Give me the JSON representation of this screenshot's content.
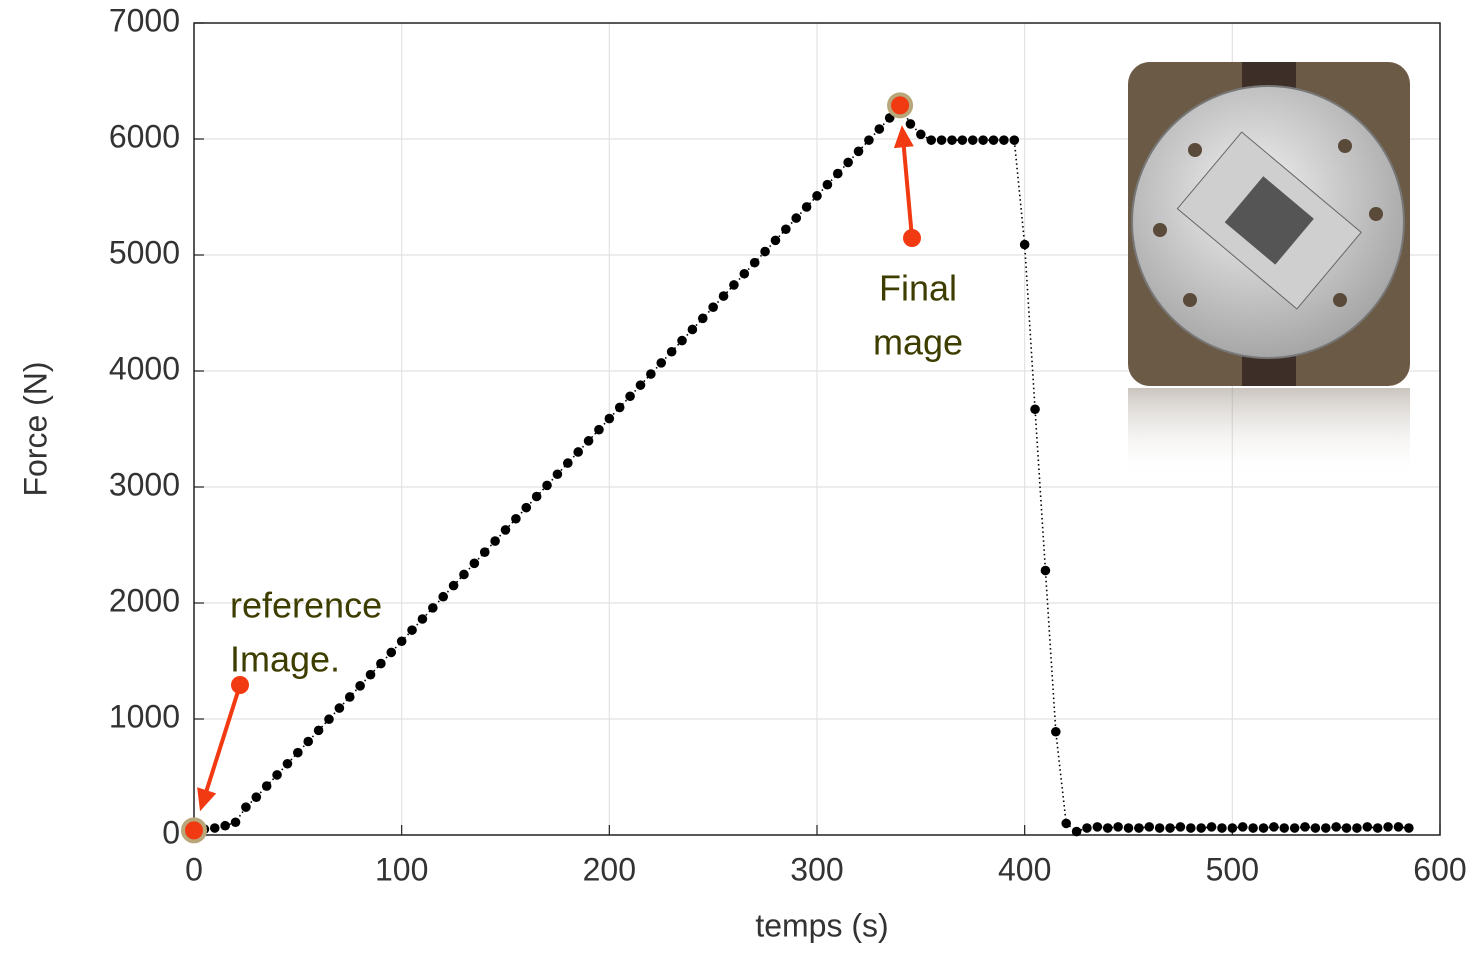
{
  "chart_data": {
    "type": "scatter",
    "x_label": "temps (s)",
    "y_label": "Force (N)",
    "xlim": [
      0,
      600
    ],
    "xticks": [
      0,
      100,
      200,
      300,
      400,
      500,
      600
    ],
    "ylim": [
      0,
      7000
    ],
    "yticks": [
      0,
      1000,
      2000,
      3000,
      4000,
      5000,
      6000,
      7000
    ],
    "grid": true,
    "series": [
      {
        "color": "#000000",
        "x": [
          0,
          5,
          10,
          15,
          20,
          25,
          30,
          35,
          40,
          45,
          50,
          55,
          60,
          65,
          70,
          75,
          80,
          85,
          90,
          95,
          100,
          105,
          110,
          115,
          120,
          125,
          130,
          135,
          140,
          145,
          150,
          155,
          160,
          165,
          170,
          175,
          180,
          185,
          190,
          195,
          200,
          205,
          210,
          215,
          220,
          225,
          230,
          235,
          240,
          245,
          250,
          255,
          260,
          265,
          270,
          275,
          280,
          285,
          290,
          295,
          300,
          305,
          310,
          315,
          320,
          325,
          330,
          335,
          340,
          345,
          350,
          355,
          360,
          365,
          370,
          375,
          380,
          385,
          390,
          395,
          400,
          405,
          410,
          415,
          420,
          425,
          430,
          435,
          440,
          445,
          450,
          455,
          460,
          465,
          470,
          475,
          480,
          485,
          490,
          495,
          500,
          505,
          510,
          515,
          520,
          525,
          530,
          535,
          540,
          545,
          550,
          555,
          560,
          565,
          570,
          575,
          580,
          585
        ],
        "values": [
          40,
          50,
          60,
          80,
          110,
          240,
          326,
          422,
          518,
          614,
          710,
          806,
          902,
          998,
          1094,
          1190,
          1286,
          1382,
          1478,
          1574,
          1670,
          1766,
          1862,
          1958,
          2054,
          2150,
          2246,
          2342,
          2438,
          2534,
          2630,
          2726,
          2822,
          2918,
          3014,
          3110,
          3206,
          3302,
          3398,
          3494,
          3590,
          3686,
          3782,
          3878,
          3974,
          4070,
          4166,
          4262,
          4358,
          4454,
          4550,
          4646,
          4742,
          4838,
          4934,
          5030,
          5126,
          5222,
          5318,
          5414,
          5510,
          5606,
          5702,
          5798,
          5894,
          5990,
          6086,
          6182,
          6290,
          6130,
          6040,
          5990,
          5990,
          5990,
          5990,
          5990,
          5990,
          5990,
          5990,
          5990,
          5090,
          3670,
          2280,
          890,
          100,
          30,
          60,
          70,
          60,
          70,
          60,
          60,
          70,
          60,
          60,
          70,
          60,
          60,
          70,
          60,
          60,
          70,
          60,
          60,
          70,
          60,
          60,
          70,
          60,
          60,
          70,
          60,
          60,
          70,
          60,
          70,
          70,
          60
        ]
      }
    ],
    "annotations": [
      {
        "lines": [
          "reference",
          "Image."
        ],
        "point": 0
      },
      {
        "lines": [
          "Final",
          "mage"
        ],
        "point": 68
      }
    ]
  }
}
